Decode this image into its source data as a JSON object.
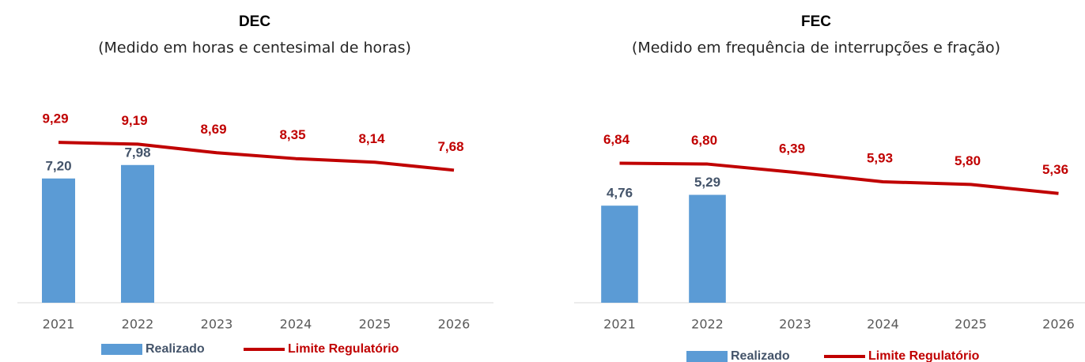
{
  "chart_data": [
    {
      "type": "combo",
      "title": "DEC",
      "subtitle": "(Medido em horas e centesimal de horas)",
      "categories": [
        "2021",
        "2022",
        "2023",
        "2024",
        "2025",
        "2026"
      ],
      "ylim": [
        0,
        12
      ],
      "series": [
        {
          "name": "Realizado",
          "type": "bar",
          "color": "#5b9bd5",
          "label_color": "#44546a",
          "values": [
            7.2,
            7.98,
            null,
            null,
            null,
            null
          ],
          "value_labels": [
            "7,20",
            "7,98",
            null,
            null,
            null,
            null
          ]
        },
        {
          "name": "Limite Regulatório",
          "type": "line",
          "color": "#c00000",
          "label_color": "#c00000",
          "values": [
            9.29,
            9.19,
            8.69,
            8.35,
            8.14,
            7.68
          ],
          "value_labels": [
            "9,29",
            "9,19",
            "8,69",
            "8,35",
            "8,14",
            "7,68"
          ]
        }
      ]
    },
    {
      "type": "combo",
      "title": "FEC",
      "subtitle": "(Medido em frequência de interrupções e fração)",
      "categories": [
        "2021",
        "2022",
        "2023",
        "2024",
        "2025",
        "2026"
      ],
      "ylim": [
        0,
        10
      ],
      "series": [
        {
          "name": "Realizado",
          "type": "bar",
          "color": "#5b9bd5",
          "label_color": "#44546a",
          "values": [
            4.76,
            5.29,
            null,
            null,
            null,
            null
          ],
          "value_labels": [
            "4,76",
            "5,29",
            null,
            null,
            null,
            null
          ]
        },
        {
          "name": "Limite Regulatório",
          "type": "line",
          "color": "#c00000",
          "label_color": "#c00000",
          "values": [
            6.84,
            6.8,
            6.39,
            5.93,
            5.8,
            5.36
          ],
          "value_labels": [
            "6,84",
            "6,80",
            "6,39",
            "5,93",
            "5,80",
            "5,36"
          ]
        }
      ]
    }
  ]
}
